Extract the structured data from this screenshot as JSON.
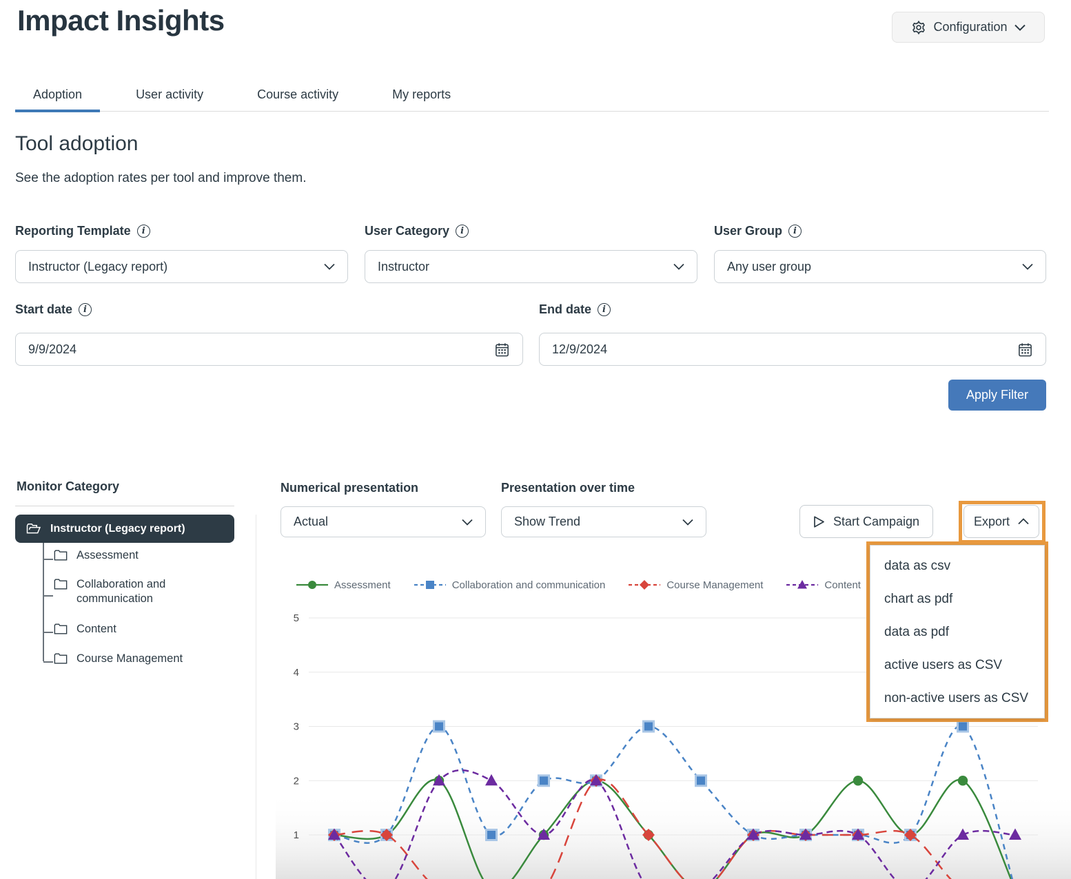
{
  "header": {
    "title": "Impact Insights",
    "configuration_label": "Configuration"
  },
  "tabs": [
    {
      "label": "Adoption",
      "active": true
    },
    {
      "label": "User activity",
      "active": false
    },
    {
      "label": "Course activity",
      "active": false
    },
    {
      "label": "My reports",
      "active": false
    }
  ],
  "section": {
    "title": "Tool adoption",
    "subtitle": "See the adoption rates per tool and improve them."
  },
  "filters": {
    "reporting_template": {
      "label": "Reporting Template",
      "value": "Instructor (Legacy report)"
    },
    "user_category": {
      "label": "User Category",
      "value": "Instructor"
    },
    "user_group": {
      "label": "User Group",
      "value": "Any user group"
    },
    "start_date": {
      "label": "Start date",
      "value": "9/9/2024"
    },
    "end_date": {
      "label": "End date",
      "value": "12/9/2024"
    },
    "apply_label": "Apply Filter"
  },
  "monitor": {
    "title": "Monitor Category",
    "root": "Instructor (Legacy report)",
    "children": [
      "Assessment",
      "Collaboration and communication",
      "Content",
      "Course Management"
    ]
  },
  "chart_controls": {
    "numerical_presentation": {
      "label": "Numerical presentation",
      "value": "Actual"
    },
    "presentation_over_time": {
      "label": "Presentation over time",
      "value": "Show Trend"
    },
    "start_campaign_label": "Start Campaign",
    "export_label": "Export"
  },
  "export_menu": {
    "items": [
      "data as csv",
      "chart as pdf",
      "data as pdf",
      "active users as CSV",
      "non-active users as CSV"
    ],
    "highlight_color": "#e8993f"
  },
  "chart_data": {
    "type": "line",
    "x": [
      1,
      2,
      3,
      4,
      5,
      6,
      7,
      8,
      9,
      10,
      11,
      12,
      13,
      14
    ],
    "series": [
      {
        "name": "Assessment",
        "color": "#3a8a3d",
        "dash": "solid",
        "marker": "circle",
        "values": [
          1,
          1,
          2,
          0,
          1,
          2,
          1,
          0,
          1,
          1,
          2,
          1,
          2,
          0
        ]
      },
      {
        "name": "Collaboration and communication",
        "color": "#4a84c6",
        "dash": "dashed",
        "marker": "square",
        "values": [
          1,
          1,
          3,
          1,
          2,
          2,
          3,
          2,
          1,
          1,
          1,
          1,
          3,
          0
        ]
      },
      {
        "name": "Course Management",
        "color": "#d8453c",
        "dash": "long-dash",
        "marker": "diamond",
        "values": [
          1,
          1,
          0,
          0,
          0,
          2,
          1,
          0,
          1,
          1,
          1,
          1,
          0,
          0
        ]
      },
      {
        "name": "Content",
        "color": "#6c2ba0",
        "dash": "dash",
        "marker": "triangle",
        "values": [
          1,
          0,
          2,
          2,
          1,
          2,
          0,
          0,
          1,
          1,
          1,
          0,
          1,
          1
        ]
      }
    ],
    "yticks": [
      1,
      2,
      3,
      4,
      5
    ],
    "ylim": [
      0,
      5
    ],
    "grid": true,
    "legend_position": "top",
    "x_axis_labels_visible": false
  }
}
